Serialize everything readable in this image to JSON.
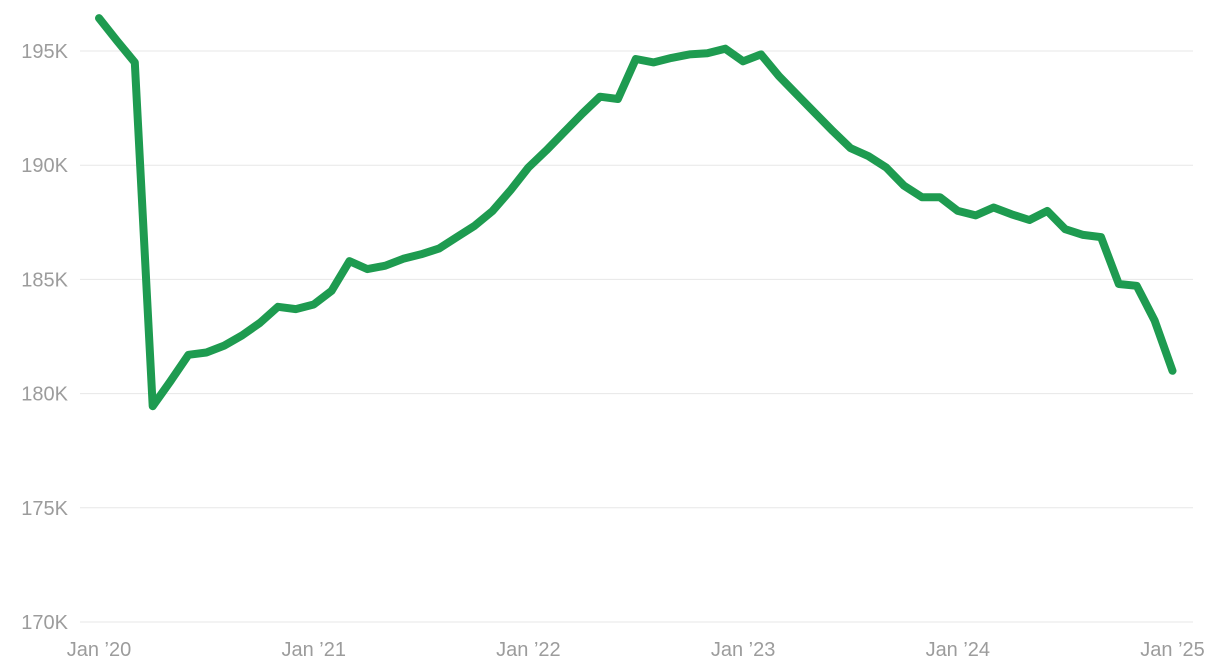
{
  "chart": {
    "background_color": "#ffffff",
    "line_color": "#1e9b50",
    "gridline_color": "#e7e7e7",
    "axis_label_color": "#9c9c9c",
    "line_width": 8
  },
  "chart_data": {
    "type": "line",
    "title": "",
    "xlabel": "",
    "ylabel": "",
    "x_start": "Jan 2020",
    "x_interval": "monthly",
    "x_tick_labels": [
      "Jan ’20",
      "Jan ’21",
      "Jan ’22",
      "Jan ’23",
      "Jan ’24",
      "Jan ’25"
    ],
    "x_tick_month_indices": [
      0,
      12,
      24,
      36,
      48,
      60
    ],
    "y_tick_labels": [
      "170K",
      "175K",
      "180K",
      "185K",
      "190K",
      "195K"
    ],
    "y_tick_values": [
      170,
      175,
      180,
      185,
      190,
      195
    ],
    "ylim": [
      170,
      196.5
    ],
    "grid": "horizontal-only",
    "legend": "none",
    "series": [
      {
        "name": "value-thousands",
        "values": [
          196.44,
          195.45,
          194.5,
          179.45,
          180.55,
          181.7,
          181.8,
          182.1,
          182.55,
          183.1,
          183.8,
          183.7,
          183.9,
          184.5,
          185.8,
          185.45,
          185.6,
          185.9,
          186.1,
          186.35,
          186.85,
          187.35,
          188.0,
          188.9,
          189.9,
          190.65,
          191.45,
          192.25,
          193.0,
          192.9,
          194.65,
          194.5,
          194.7,
          194.85,
          194.9,
          195.1,
          194.55,
          194.85,
          193.9,
          193.1,
          192.3,
          191.5,
          190.75,
          190.4,
          189.9,
          189.1,
          188.6,
          188.6,
          188.0,
          187.8,
          188.15,
          187.85,
          187.6,
          188.0,
          187.2,
          186.95,
          186.85,
          184.8,
          184.72,
          183.2,
          181.0
        ]
      }
    ]
  }
}
